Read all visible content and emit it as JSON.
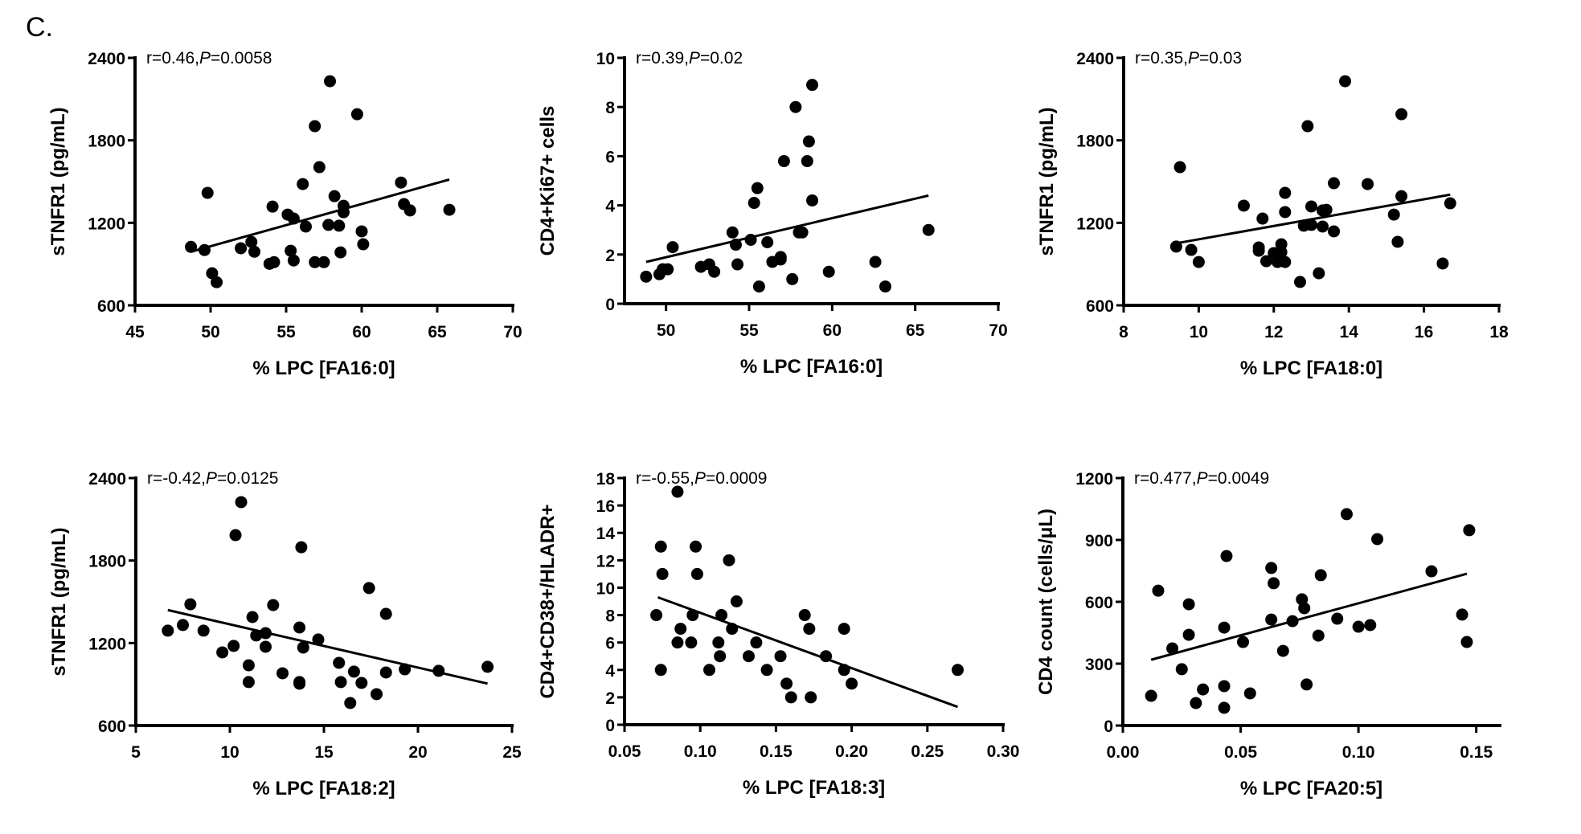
{
  "figure_label": "C.",
  "chart_data": [
    {
      "type": "scatter",
      "id": "sTNFR1_vs_FA16_0",
      "title": "",
      "annotation": {
        "prefix": "r=0.46,",
        "p_symbol": "P",
        "suffix": "=0.0058"
      },
      "xlabel": "% LPC [FA16:0]",
      "ylabel": "sTNFR1 (pg/mL)",
      "xlim": [
        45,
        70
      ],
      "ylim": [
        600,
        2400
      ],
      "xticks": [
        45,
        50,
        55,
        60,
        65,
        70
      ],
      "xtick_labels": [
        "45",
        "50",
        "55",
        "60",
        "65",
        "70"
      ],
      "yticks": [
        600,
        1200,
        1800,
        2400
      ],
      "ytick_labels": [
        "600",
        "1200",
        "1800",
        "2400"
      ],
      "grid": false,
      "fit_line": [
        [
          48.7,
          990
        ],
        [
          65.8,
          1515
        ]
      ],
      "points": [
        [
          48.7,
          1025
        ],
        [
          49.6,
          1002
        ],
        [
          49.8,
          1418
        ],
        [
          50.1,
          833
        ],
        [
          50.4,
          768
        ],
        [
          52.0,
          1015
        ],
        [
          52.7,
          1061
        ],
        [
          52.9,
          990
        ],
        [
          53.9,
          902
        ],
        [
          54.2,
          914
        ],
        [
          54.1,
          1318
        ],
        [
          55.1,
          1260
        ],
        [
          55.5,
          1231
        ],
        [
          55.3,
          997
        ],
        [
          55.5,
          926
        ],
        [
          56.1,
          1482
        ],
        [
          56.3,
          1173
        ],
        [
          56.9,
          1903
        ],
        [
          56.9,
          914
        ],
        [
          57.2,
          1605
        ],
        [
          57.5,
          914
        ],
        [
          57.9,
          2230
        ],
        [
          57.8,
          1185
        ],
        [
          58.2,
          1394
        ],
        [
          58.5,
          1179
        ],
        [
          58.6,
          985
        ],
        [
          58.8,
          1324
        ],
        [
          58.8,
          1277
        ],
        [
          59.7,
          1990
        ],
        [
          60.0,
          1138
        ],
        [
          60.1,
          1044
        ],
        [
          62.6,
          1493
        ],
        [
          62.8,
          1336
        ],
        [
          63.2,
          1290
        ],
        [
          65.8,
          1295
        ]
      ]
    },
    {
      "type": "scatter",
      "id": "CD4Ki67_vs_FA16_0",
      "title": "",
      "annotation": {
        "prefix": "r=0.39,",
        "p_symbol": "P",
        "suffix": "=0.02"
      },
      "xlabel": "% LPC [FA16:0]",
      "ylabel": "CD4+Ki67+ cells",
      "xlim": [
        47.5,
        70
      ],
      "ylim": [
        0,
        10
      ],
      "xticks": [
        50,
        55,
        60,
        65,
        70
      ],
      "xtick_labels": [
        "50",
        "55",
        "60",
        "65",
        "70"
      ],
      "yticks": [
        0,
        2,
        4,
        6,
        8,
        10
      ],
      "ytick_labels": [
        "0",
        "2",
        "4",
        "6",
        "8",
        "10"
      ],
      "grid": false,
      "fit_line": [
        [
          48.8,
          1.7
        ],
        [
          65.8,
          4.4
        ]
      ],
      "points": [
        [
          48.8,
          1.1
        ],
        [
          49.6,
          1.2
        ],
        [
          49.8,
          1.4
        ],
        [
          50.1,
          1.4
        ],
        [
          50.4,
          2.3
        ],
        [
          52.1,
          1.5
        ],
        [
          52.6,
          1.6
        ],
        [
          52.9,
          1.3
        ],
        [
          54.0,
          2.9
        ],
        [
          54.2,
          2.4
        ],
        [
          54.3,
          1.6
        ],
        [
          55.1,
          2.6
        ],
        [
          55.3,
          4.1
        ],
        [
          55.5,
          4.7
        ],
        [
          55.6,
          0.7
        ],
        [
          56.1,
          2.5
        ],
        [
          56.4,
          1.7
        ],
        [
          56.9,
          1.9
        ],
        [
          56.9,
          1.8
        ],
        [
          57.1,
          5.8
        ],
        [
          57.6,
          1.0
        ],
        [
          57.8,
          8.0
        ],
        [
          58.0,
          2.9
        ],
        [
          58.2,
          2.9
        ],
        [
          58.5,
          5.8
        ],
        [
          58.6,
          6.6
        ],
        [
          58.8,
          4.2
        ],
        [
          58.8,
          8.9
        ],
        [
          59.8,
          1.3
        ],
        [
          62.6,
          1.7
        ],
        [
          63.2,
          0.7
        ],
        [
          65.8,
          3.0
        ]
      ]
    },
    {
      "type": "scatter",
      "id": "sTNFR1_vs_FA18_0",
      "title": "",
      "annotation": {
        "prefix": "r=0.35,",
        "p_symbol": "P",
        "suffix": "=0.03"
      },
      "xlabel": "% LPC [FA18:0]",
      "ylabel": "sTNFR1 (pg/mL)",
      "xlim": [
        8,
        18
      ],
      "ylim": [
        600,
        2400
      ],
      "xticks": [
        8,
        10,
        12,
        14,
        16,
        18
      ],
      "xtick_labels": [
        "8",
        "10",
        "12",
        "14",
        "16",
        "18"
      ],
      "yticks": [
        600,
        1200,
        1800,
        2400
      ],
      "ytick_labels": [
        "600",
        "1200",
        "1800",
        "2400"
      ],
      "grid": false,
      "fit_line": [
        [
          9.4,
          1051
        ],
        [
          16.7,
          1405
        ]
      ],
      "points": [
        [
          9.4,
          1027
        ],
        [
          9.5,
          1605
        ],
        [
          9.8,
          1003
        ],
        [
          10.0,
          915
        ],
        [
          11.2,
          1325
        ],
        [
          11.7,
          1231
        ],
        [
          11.6,
          1021
        ],
        [
          11.6,
          997
        ],
        [
          11.8,
          921
        ],
        [
          12.2,
          1044
        ],
        [
          12.0,
          980
        ],
        [
          12.2,
          986
        ],
        [
          12.1,
          915
        ],
        [
          12.3,
          915
        ],
        [
          12.3,
          1418
        ],
        [
          12.3,
          1278
        ],
        [
          12.7,
          770
        ],
        [
          12.8,
          1179
        ],
        [
          13.0,
          1185
        ],
        [
          13.0,
          1319
        ],
        [
          12.9,
          1903
        ],
        [
          13.2,
          833
        ],
        [
          13.3,
          1173
        ],
        [
          13.3,
          1290
        ],
        [
          13.4,
          1295
        ],
        [
          13.6,
          1138
        ],
        [
          13.6,
          1488
        ],
        [
          13.9,
          2230
        ],
        [
          14.5,
          1482
        ],
        [
          15.2,
          1260
        ],
        [
          15.3,
          1062
        ],
        [
          15.4,
          1394
        ],
        [
          15.4,
          1990
        ],
        [
          16.5,
          904
        ],
        [
          16.7,
          1342
        ]
      ]
    },
    {
      "type": "scatter",
      "id": "sTNFR1_vs_FA18_2",
      "title": "",
      "annotation": {
        "prefix": "r=-0.42,",
        "p_symbol": "P",
        "suffix": "=0.0125"
      },
      "xlabel": "% LPC [FA18:2]",
      "ylabel": "sTNFR1 (pg/mL)",
      "xlim": [
        5,
        25
      ],
      "ylim": [
        600,
        2400
      ],
      "xticks": [
        5,
        10,
        15,
        20,
        25
      ],
      "xtick_labels": [
        "5",
        "10",
        "15",
        "20",
        "25"
      ],
      "yticks": [
        600,
        1200,
        1800,
        2400
      ],
      "ytick_labels": [
        "600",
        "1200",
        "1800",
        "2400"
      ],
      "grid": false,
      "fit_line": [
        [
          6.7,
          1440
        ],
        [
          23.7,
          905
        ]
      ],
      "points": [
        [
          6.7,
          1290
        ],
        [
          7.5,
          1331
        ],
        [
          7.9,
          1482
        ],
        [
          8.6,
          1290
        ],
        [
          9.6,
          1132
        ],
        [
          10.2,
          1179
        ],
        [
          10.3,
          1985
        ],
        [
          10.6,
          2225
        ],
        [
          11.0,
          1038
        ],
        [
          11.0,
          916
        ],
        [
          11.2,
          1389
        ],
        [
          11.4,
          1255
        ],
        [
          11.9,
          1272
        ],
        [
          11.9,
          1173
        ],
        [
          12.3,
          1476
        ],
        [
          12.8,
          980
        ],
        [
          13.7,
          904
        ],
        [
          13.7,
          916
        ],
        [
          13.7,
          1313
        ],
        [
          13.8,
          1897
        ],
        [
          13.9,
          1167
        ],
        [
          14.7,
          1226
        ],
        [
          15.8,
          1056
        ],
        [
          15.9,
          916
        ],
        [
          16.4,
          764
        ],
        [
          16.6,
          992
        ],
        [
          17.0,
          910
        ],
        [
          17.4,
          1600
        ],
        [
          17.8,
          828
        ],
        [
          18.3,
          1412
        ],
        [
          18.3,
          986
        ],
        [
          19.3,
          1009
        ],
        [
          21.1,
          998
        ],
        [
          23.7,
          1027
        ]
      ]
    },
    {
      "type": "scatter",
      "id": "CD4CD38HLADR_vs_FA18_3",
      "title": "",
      "annotation": {
        "prefix": "r=-0.55,",
        "p_symbol": "P",
        "suffix": "=0.0009"
      },
      "xlabel": "% LPC [FA18:3]",
      "ylabel": "CD4+CD38+/HLADR+",
      "xlim": [
        0.05,
        0.3
      ],
      "ylim": [
        0,
        18
      ],
      "xticks": [
        0.05,
        0.1,
        0.15,
        0.2,
        0.25,
        0.3
      ],
      "xtick_labels": [
        "0.05",
        "0.10",
        "0.15",
        "0.20",
        "0.25",
        "0.30"
      ],
      "yticks": [
        0,
        2,
        4,
        6,
        8,
        10,
        12,
        14,
        16,
        18
      ],
      "ytick_labels": [
        "0",
        "2",
        "4",
        "6",
        "8",
        "10",
        "12",
        "14",
        "16",
        "18"
      ],
      "grid": false,
      "fit_line": [
        [
          0.072,
          9.3
        ],
        [
          0.27,
          1.3
        ]
      ],
      "points": [
        [
          0.071,
          8
        ],
        [
          0.074,
          13
        ],
        [
          0.075,
          11
        ],
        [
          0.074,
          4
        ],
        [
          0.085,
          17
        ],
        [
          0.087,
          7
        ],
        [
          0.085,
          6
        ],
        [
          0.094,
          6
        ],
        [
          0.095,
          8
        ],
        [
          0.097,
          13
        ],
        [
          0.098,
          11
        ],
        [
          0.106,
          4
        ],
        [
          0.112,
          6
        ],
        [
          0.113,
          5
        ],
        [
          0.114,
          8
        ],
        [
          0.119,
          12
        ],
        [
          0.121,
          7
        ],
        [
          0.124,
          9
        ],
        [
          0.132,
          5
        ],
        [
          0.137,
          6
        ],
        [
          0.144,
          4
        ],
        [
          0.153,
          5
        ],
        [
          0.157,
          3
        ],
        [
          0.16,
          2
        ],
        [
          0.169,
          8
        ],
        [
          0.172,
          7
        ],
        [
          0.173,
          2
        ],
        [
          0.183,
          5
        ],
        [
          0.195,
          7
        ],
        [
          0.195,
          4
        ],
        [
          0.2,
          3
        ],
        [
          0.27,
          4
        ]
      ]
    },
    {
      "type": "scatter",
      "id": "CD4count_vs_FA20_5",
      "title": "",
      "annotation": {
        "prefix": "r=0.477,",
        "p_symbol": "P",
        "suffix": "=0.0049"
      },
      "xlabel": "% LPC [FA20:5]",
      "ylabel": "CD4 count (cells/μL)",
      "xlim": [
        0.0,
        0.16
      ],
      "ylim": [
        0,
        1200
      ],
      "xticks": [
        0.0,
        0.05,
        0.1,
        0.15
      ],
      "xtick_labels": [
        "0.00",
        "0.05",
        "0.10",
        "0.15"
      ],
      "yticks": [
        0,
        300,
        600,
        900,
        1200
      ],
      "ytick_labels": [
        "0",
        "300",
        "600",
        "900",
        "1200"
      ],
      "grid": false,
      "fit_line": [
        [
          0.012,
          319
        ],
        [
          0.146,
          736
        ]
      ],
      "points": [
        [
          0.012,
          144
        ],
        [
          0.015,
          654
        ],
        [
          0.021,
          374
        ],
        [
          0.025,
          273
        ],
        [
          0.028,
          440
        ],
        [
          0.028,
          588
        ],
        [
          0.031,
          109
        ],
        [
          0.034,
          175
        ],
        [
          0.043,
          475
        ],
        [
          0.043,
          191
        ],
        [
          0.043,
          86
        ],
        [
          0.044,
          822
        ],
        [
          0.051,
          405
        ],
        [
          0.054,
          156
        ],
        [
          0.063,
          514
        ],
        [
          0.063,
          764
        ],
        [
          0.064,
          690
        ],
        [
          0.068,
          362
        ],
        [
          0.072,
          506
        ],
        [
          0.076,
          612
        ],
        [
          0.077,
          569
        ],
        [
          0.078,
          199
        ],
        [
          0.083,
          436
        ],
        [
          0.084,
          729
        ],
        [
          0.091,
          518
        ],
        [
          0.095,
          1025
        ],
        [
          0.1,
          479
        ],
        [
          0.105,
          487
        ],
        [
          0.108,
          904
        ],
        [
          0.131,
          748
        ],
        [
          0.144,
          538
        ],
        [
          0.146,
          405
        ],
        [
          0.147,
          947
        ]
      ]
    }
  ]
}
